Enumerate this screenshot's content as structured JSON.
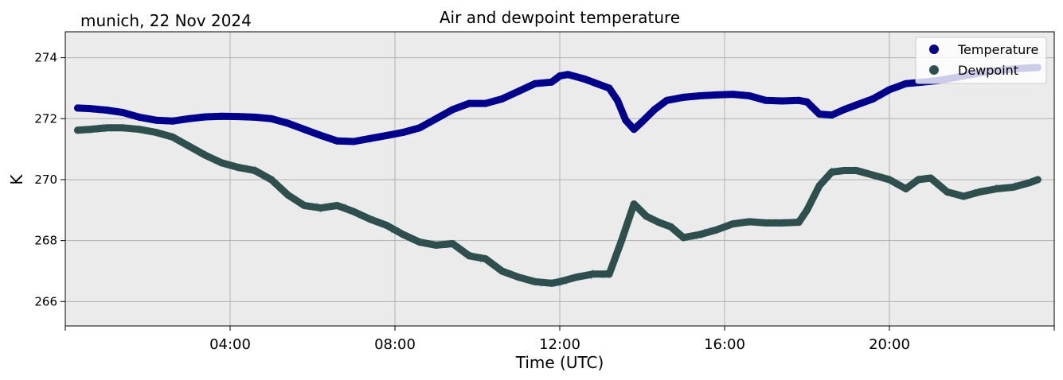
{
  "chart_data": {
    "type": "line",
    "title": "Air and dewpoint temperature",
    "subtitle": "munich, 22 Nov 2024",
    "xlabel": "Time (UTC)",
    "ylabel": "K",
    "x_tick_labels": [
      "04:00",
      "08:00",
      "12:00",
      "16:00",
      "20:00"
    ],
    "y_tick_labels": [
      "266",
      "268",
      "270",
      "272",
      "274"
    ],
    "x_ticks_hours": [
      4,
      8,
      12,
      16,
      20
    ],
    "y_ticks": [
      266,
      268,
      270,
      272,
      274
    ],
    "xlim_hours": [
      0,
      24
    ],
    "ylim": [
      265.2,
      274.85
    ],
    "grid": true,
    "legend_position": "top-right",
    "background": "#ebebeb",
    "series": [
      {
        "name": "Temperature",
        "color": "#00008b",
        "raw_color": "#5f9ea0",
        "x_hours": [
          0.3,
          0.6,
          1.0,
          1.4,
          1.8,
          2.2,
          2.6,
          3.0,
          3.4,
          3.8,
          4.2,
          4.6,
          5.0,
          5.4,
          5.8,
          6.2,
          6.6,
          7.0,
          7.4,
          7.8,
          8.2,
          8.6,
          9.0,
          9.4,
          9.8,
          10.2,
          10.6,
          11.0,
          11.4,
          11.8,
          12.0,
          12.2,
          12.6,
          13.0,
          13.2,
          13.4,
          13.6,
          13.8,
          14.0,
          14.3,
          14.6,
          15.0,
          15.4,
          15.8,
          16.2,
          16.6,
          17.0,
          17.4,
          17.8,
          18.0,
          18.3,
          18.6,
          18.9,
          19.2,
          19.6,
          20.0,
          20.4,
          20.8,
          21.2,
          21.6,
          22.0,
          22.4,
          22.8,
          23.2,
          23.6
        ],
        "values": [
          272.35,
          272.33,
          272.28,
          272.2,
          272.05,
          271.95,
          271.92,
          272.0,
          272.06,
          272.08,
          272.07,
          272.05,
          272.0,
          271.85,
          271.65,
          271.45,
          271.27,
          271.25,
          271.35,
          271.45,
          271.55,
          271.7,
          272.0,
          272.3,
          272.5,
          272.5,
          272.65,
          272.9,
          273.15,
          273.2,
          273.4,
          273.45,
          273.3,
          273.1,
          273.0,
          272.6,
          271.95,
          271.65,
          271.9,
          272.3,
          272.6,
          272.7,
          272.75,
          272.78,
          272.8,
          272.75,
          272.6,
          272.58,
          272.6,
          272.55,
          272.15,
          272.12,
          272.3,
          272.45,
          272.65,
          272.95,
          273.15,
          273.2,
          273.25,
          273.35,
          273.45,
          273.55,
          273.6,
          273.65,
          273.68
        ]
      },
      {
        "name": "Dewpoint",
        "color": "#2f4f4f",
        "raw_color": "#1e9ae6",
        "x_hours": [
          0.3,
          0.6,
          1.0,
          1.4,
          1.8,
          2.2,
          2.6,
          3.0,
          3.4,
          3.8,
          4.2,
          4.6,
          5.0,
          5.4,
          5.8,
          6.2,
          6.6,
          7.0,
          7.4,
          7.8,
          8.2,
          8.6,
          9.0,
          9.4,
          9.8,
          10.2,
          10.6,
          11.0,
          11.4,
          11.8,
          12.0,
          12.4,
          12.8,
          13.2,
          13.5,
          13.8,
          14.1,
          14.4,
          14.7,
          15.0,
          15.4,
          15.8,
          16.2,
          16.6,
          17.0,
          17.4,
          17.8,
          18.0,
          18.3,
          18.6,
          18.9,
          19.2,
          19.6,
          20.0,
          20.4,
          20.7,
          21.0,
          21.4,
          21.8,
          22.2,
          22.6,
          23.0,
          23.4,
          23.6
        ],
        "values": [
          271.62,
          271.65,
          271.7,
          271.7,
          271.65,
          271.55,
          271.4,
          271.1,
          270.8,
          270.55,
          270.4,
          270.3,
          270.0,
          269.5,
          269.15,
          269.07,
          269.15,
          268.95,
          268.7,
          268.5,
          268.2,
          267.95,
          267.85,
          267.9,
          267.5,
          267.4,
          267.0,
          266.8,
          266.65,
          266.6,
          266.65,
          266.8,
          266.9,
          266.9,
          268.0,
          269.2,
          268.8,
          268.6,
          268.45,
          268.1,
          268.2,
          268.35,
          268.55,
          268.62,
          268.58,
          268.58,
          268.6,
          269.0,
          269.8,
          270.25,
          270.3,
          270.3,
          270.15,
          270.0,
          269.7,
          270.0,
          270.05,
          269.6,
          269.45,
          269.6,
          269.7,
          269.75,
          269.9,
          270.0
        ]
      }
    ]
  }
}
